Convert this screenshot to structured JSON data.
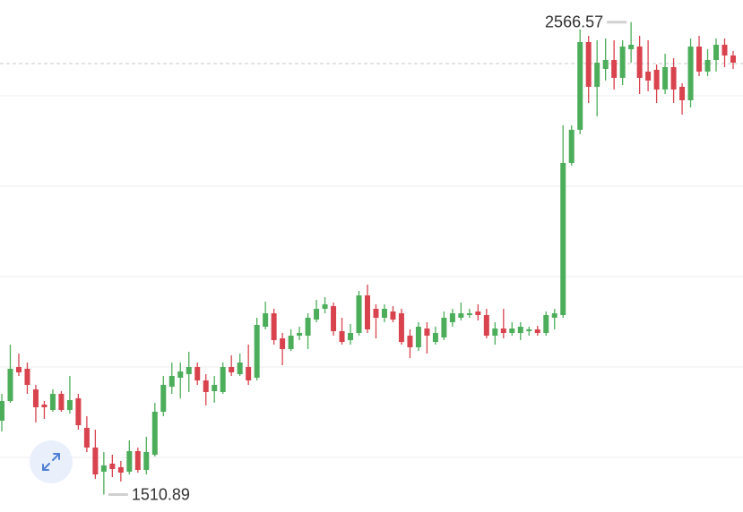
{
  "chart_data": {
    "type": "candlestick",
    "up_color": "#4cae5a",
    "down_color": "#d9434e",
    "ylim": [
      1472,
      2616
    ],
    "open": [
      1676,
      1720,
      1796,
      1792,
      1746,
      1712,
      1700,
      1736,
      1700,
      1726,
      1660,
      1616,
      1562,
      1580,
      1572,
      1562,
      1608,
      1566,
      1600,
      1696,
      1752,
      1772,
      1780,
      1796,
      1766,
      1742,
      1740,
      1796,
      1780,
      1796,
      1772,
      1886,
      1916,
      1860,
      1836,
      1866,
      1866,
      1902,
      1926,
      1932,
      1876,
      1856,
      1872,
      1956,
      1926,
      1906,
      1920,
      1916,
      1866,
      1840,
      1882,
      1852,
      1862,
      1896,
      1906,
      1912,
      1920,
      1912,
      1866,
      1882,
      1872,
      1872,
      1876,
      1880,
      1872,
      1906,
      1912,
      2252,
      2326,
      2522,
      2422,
      2462,
      2482,
      2442,
      2506,
      2512,
      2456,
      2460,
      2416,
      2466,
      2422,
      2392,
      2512,
      2456,
      2482,
      2516,
      2492
    ],
    "high": [
      1736,
      1846,
      1826,
      1806,
      1756,
      1720,
      1746,
      1742,
      1776,
      1736,
      1686,
      1656,
      1606,
      1600,
      1586,
      1632,
      1616,
      1640,
      1716,
      1776,
      1806,
      1806,
      1830,
      1806,
      1780,
      1776,
      1806,
      1822,
      1826,
      1846,
      1906,
      1942,
      1926,
      1872,
      1880,
      1886,
      1916,
      1946,
      1952,
      1940,
      1906,
      1892,
      1966,
      1980,
      1936,
      1936,
      1932,
      1926,
      1880,
      1896,
      1896,
      1886,
      1920,
      1926,
      1940,
      1926,
      1936,
      1926,
      1896,
      1926,
      1896,
      1896,
      1886,
      1888,
      1920,
      1926,
      2336,
      2336,
      2550,
      2536,
      2526,
      2530,
      2526,
      2526,
      2566.57,
      2536,
      2526,
      2472,
      2496,
      2486,
      2430,
      2530,
      2536,
      2506,
      2530,
      2530,
      2502
    ],
    "low": [
      1652,
      1716,
      1776,
      1736,
      1672,
      1680,
      1696,
      1696,
      1692,
      1656,
      1606,
      1546,
      1510.89,
      1550,
      1540,
      1556,
      1560,
      1556,
      1596,
      1686,
      1736,
      1726,
      1740,
      1756,
      1710,
      1716,
      1736,
      1776,
      1776,
      1756,
      1766,
      1880,
      1846,
      1800,
      1832,
      1856,
      1836,
      1896,
      1916,
      1866,
      1846,
      1846,
      1866,
      1872,
      1860,
      1896,
      1896,
      1846,
      1816,
      1832,
      1826,
      1846,
      1856,
      1886,
      1900,
      1906,
      1900,
      1860,
      1846,
      1860,
      1866,
      1856,
      1866,
      1866,
      1866,
      1880,
      1906,
      2246,
      2316,
      2386,
      2356,
      2436,
      2416,
      2426,
      2476,
      2406,
      2412,
      2386,
      2406,
      2386,
      2360,
      2376,
      2446,
      2446,
      2456,
      2466,
      2462
    ],
    "close": [
      1720,
      1792,
      1784,
      1756,
      1706,
      1706,
      1736,
      1700,
      1722,
      1666,
      1616,
      1556,
      1576,
      1568,
      1560,
      1608,
      1566,
      1606,
      1696,
      1756,
      1776,
      1786,
      1796,
      1766,
      1740,
      1756,
      1796,
      1784,
      1806,
      1766,
      1890,
      1916,
      1856,
      1836,
      1866,
      1872,
      1906,
      1926,
      1936,
      1876,
      1852,
      1872,
      1956,
      1880,
      1906,
      1926,
      1902,
      1852,
      1840,
      1886,
      1866,
      1872,
      1906,
      1916,
      1916,
      1916,
      1912,
      1866,
      1882,
      1872,
      1882,
      1886,
      1880,
      1872,
      1912,
      1916,
      2252,
      2326,
      2522,
      2422,
      2476,
      2482,
      2442,
      2512,
      2516,
      2442,
      2436,
      2416,
      2466,
      2416,
      2392,
      2512,
      2456,
      2482,
      2516,
      2492,
      2476
    ]
  }
}
